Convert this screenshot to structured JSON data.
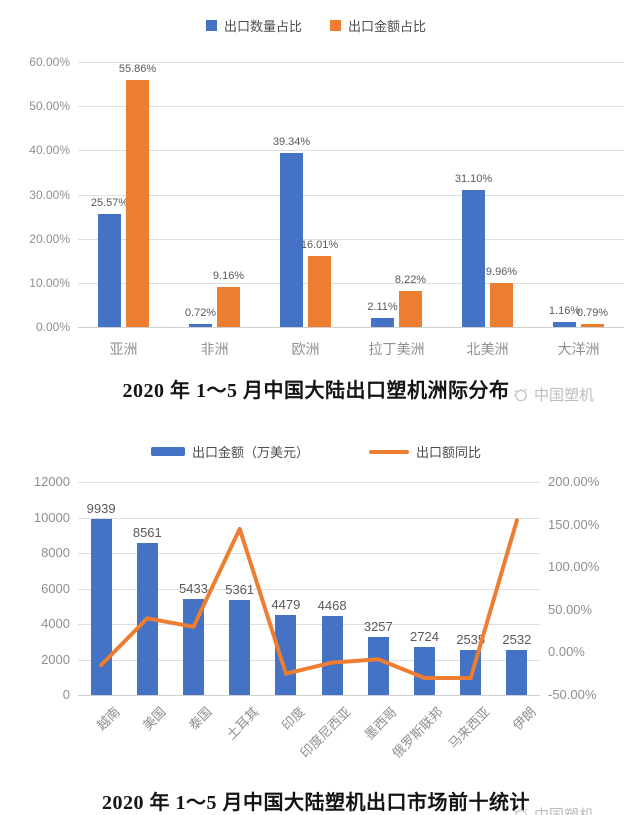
{
  "watermark": {
    "brand": "中国塑机",
    "icon": "globe-icon"
  },
  "colors": {
    "bar_blue": "#4472c4",
    "accent_orange": "#ed7d31",
    "gridline": "#dedede",
    "axis_text": "#8f8f8f",
    "value_label_text": "#595959",
    "title_text": "#141414",
    "watermark_text": "#bcbcbc"
  },
  "chart_data": [
    {
      "type": "bar",
      "title": "2020 年 1～5 月中国大陆出口塑机洲际分布",
      "categories": [
        "亚洲",
        "非洲",
        "欧洲",
        "拉丁美洲",
        "北美洲",
        "大洋洲"
      ],
      "series": [
        {
          "name": "出口数量占比",
          "color": "#4472c4",
          "values": [
            25.57,
            0.72,
            39.34,
            2.11,
            31.1,
            1.16
          ],
          "labels": [
            "25.57%",
            "0.72%",
            "39.34%",
            "2.11%",
            "31.10%",
            "1.16%"
          ]
        },
        {
          "name": "出口金额占比",
          "color": "#ed7d31",
          "values": [
            55.86,
            9.16,
            16.01,
            8.22,
            9.96,
            0.79
          ],
          "labels": [
            "55.86%",
            "9.16%",
            "16.01%",
            "8.22%",
            "9.96%",
            "0.79%"
          ]
        }
      ],
      "y_axis": {
        "min": 0,
        "max": 60,
        "step": 10,
        "tick_labels": [
          "0.00%",
          "10.00%",
          "20.00%",
          "30.00%",
          "40.00%",
          "50.00%",
          "60.00%"
        ]
      },
      "legend_position": "top",
      "grid": true
    },
    {
      "type": "combo",
      "title": "2020 年 1～5 月中国大陆塑机出口市场前十统计",
      "categories": [
        "越南",
        "美国",
        "泰国",
        "土耳其",
        "印度",
        "印度尼西亚",
        "墨西哥",
        "俄罗斯联邦",
        "马来西亚",
        "伊朗"
      ],
      "bar_series": {
        "name": "出口金额（万美元）",
        "color": "#4472c4",
        "values": [
          9939,
          8561,
          5433,
          5361,
          4479,
          4468,
          3257,
          2724,
          2535,
          2532
        ]
      },
      "line_series": {
        "name": "出口额同比",
        "color": "#ed7d31",
        "values_pct": [
          -15,
          40,
          30,
          145,
          -25,
          -12,
          -8,
          -30,
          -30,
          155
        ]
      },
      "y_axis_left": {
        "min": 0,
        "max": 12000,
        "step": 2000,
        "tick_labels": [
          "0",
          "2000",
          "4000",
          "6000",
          "8000",
          "10000",
          "12000"
        ]
      },
      "y_axis_right": {
        "min": -50,
        "max": 200,
        "step": 50,
        "tick_labels": [
          "-50.00%",
          "0.00%",
          "50.00%",
          "100.00%",
          "150.00%",
          "200.00%"
        ]
      },
      "legend_position": "top",
      "grid": true
    }
  ]
}
